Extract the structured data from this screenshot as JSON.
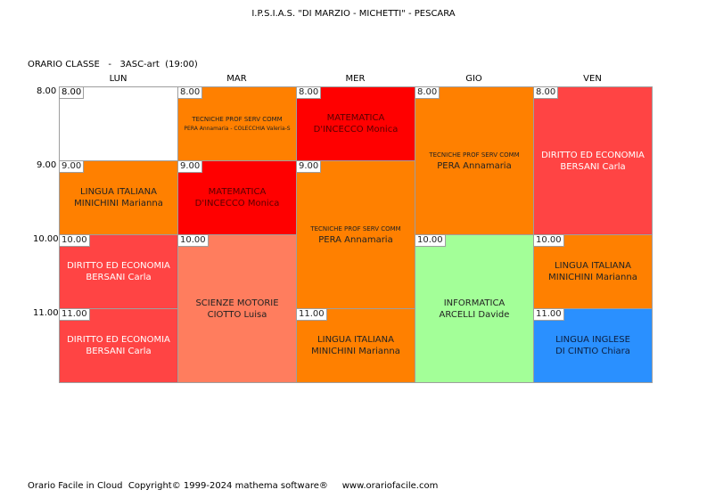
{
  "header": {
    "title": "I.P.S.I.A.S. \"DI MARZIO - MICHETTI\" - PESCARA"
  },
  "class_label": "ORARIO CLASSE   -   3ASC-art  (19:00)",
  "days": [
    "LUN",
    "MAR",
    "MER",
    "GIO",
    "VEN"
  ],
  "hours": [
    "8.00",
    "9.00",
    "10.00",
    "11.00"
  ],
  "colors": {
    "orange": "#ff8000",
    "red": "#ff0000",
    "light_red": "#ff4444",
    "salmon": "#ff7d5e",
    "light_green": "#a3ff98",
    "blue": "#2a90ff",
    "empty": "#ffffff"
  },
  "lessons": {
    "lun_800": {
      "start": "8.00"
    },
    "lun_900": {
      "start": "9.00",
      "subject": "LINGUA ITALIANA",
      "teacher": "MINICHINI Marianna"
    },
    "lun_1000": {
      "start": "10.00",
      "subject": "DIRITTO ED ECONOMIA",
      "teacher": "BERSANI Carla"
    },
    "lun_1100": {
      "start": "11.00",
      "subject": "DIRITTO ED ECONOMIA",
      "teacher": "BERSANI Carla"
    },
    "mar_800": {
      "start": "8.00",
      "subject": "TECNICHE PROF SERV COMM",
      "teacher": "PERA Annamaria - COLECCHIA Valeria-S"
    },
    "mar_900": {
      "start": "9.00",
      "subject": "MATEMATICA",
      "teacher": "D'INCECCO Monica"
    },
    "mar_1000": {
      "start": "10.00",
      "subject": "SCIENZE MOTORIE",
      "teacher": "CIOTTO Luisa"
    },
    "mer_800": {
      "start": "8.00",
      "subject": "MATEMATICA",
      "teacher": "D'INCECCO Monica"
    },
    "mer_900": {
      "start": "9.00",
      "subject": "TECNICHE PROF SERV COMM",
      "teacher": "PERA Annamaria"
    },
    "mer_1100": {
      "start": "11.00",
      "subject": "LINGUA ITALIANA",
      "teacher": "MINICHINI Marianna"
    },
    "gio_800": {
      "start": "8.00",
      "subject": "TECNICHE PROF SERV COMM",
      "teacher": "PERA Annamaria"
    },
    "gio_1000": {
      "start": "10.00",
      "subject": "INFORMATICA",
      "teacher": "ARCELLI Davide"
    },
    "ven_800": {
      "start": "8.00",
      "subject": "DIRITTO ED ECONOMIA",
      "teacher": "BERSANI Carla"
    },
    "ven_1000": {
      "start": "10.00",
      "subject": "LINGUA ITALIANA",
      "teacher": "MINICHINI Marianna"
    },
    "ven_1100": {
      "start": "11.00",
      "subject": "LINGUA INGLESE",
      "teacher": "DI CINTIO Chiara"
    }
  },
  "footer": "Orario Facile in Cloud  Copyright© 1999-2024 mathema software®     www.orariofacile.com"
}
